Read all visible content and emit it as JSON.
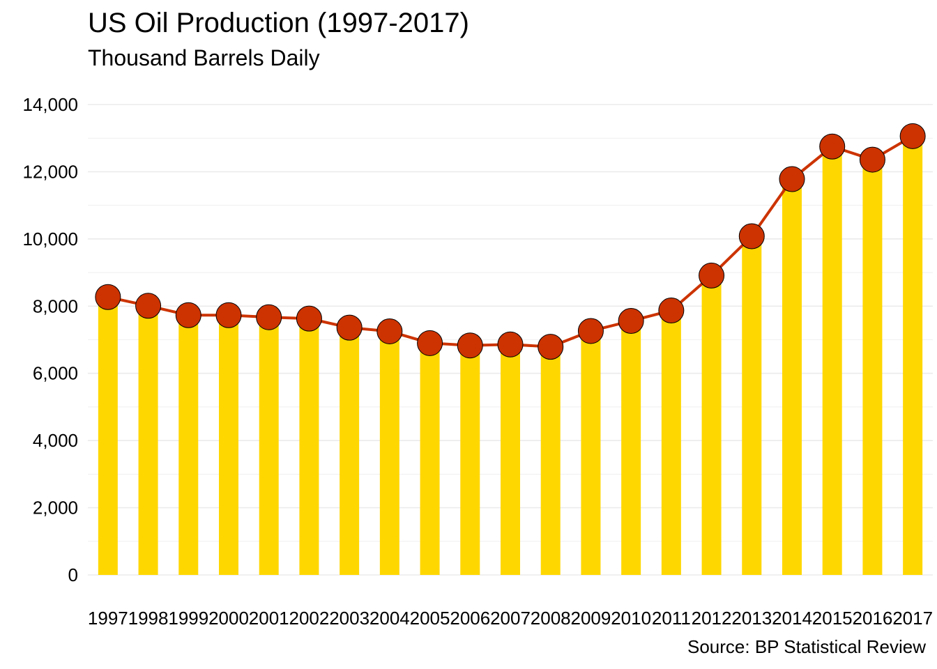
{
  "chart_data": {
    "type": "bar",
    "title": "US Oil Production (1997-2017)",
    "subtitle": "Thousand Barrels Daily",
    "source": "Source: BP Statistical Review",
    "xlabel": "",
    "ylabel": "",
    "categories": [
      "1997",
      "1998",
      "1999",
      "2000",
      "2001",
      "2002",
      "2003",
      "2004",
      "2005",
      "2006",
      "2007",
      "2008",
      "2009",
      "2010",
      "2011",
      "2012",
      "2013",
      "2014",
      "2015",
      "2016",
      "2017"
    ],
    "values": [
      8270,
      8010,
      7730,
      7730,
      7670,
      7630,
      7360,
      7250,
      6900,
      6830,
      6860,
      6790,
      7260,
      7560,
      7870,
      8910,
      10080,
      11780,
      12750,
      12360,
      13060
    ],
    "ylim": [
      0,
      14000
    ],
    "yticks": [
      0,
      2000,
      4000,
      6000,
      8000,
      10000,
      12000,
      14000
    ],
    "ytick_labels": [
      "0",
      "2,000",
      "4,000",
      "6,000",
      "8,000",
      "10,000",
      "12,000",
      "14,000"
    ],
    "grid": true,
    "colors": {
      "bar": "#FFD700",
      "line": "#CC3300",
      "point_fill": "#CC3300",
      "point_stroke": "#000000",
      "grid": "#EBEBEB"
    }
  }
}
